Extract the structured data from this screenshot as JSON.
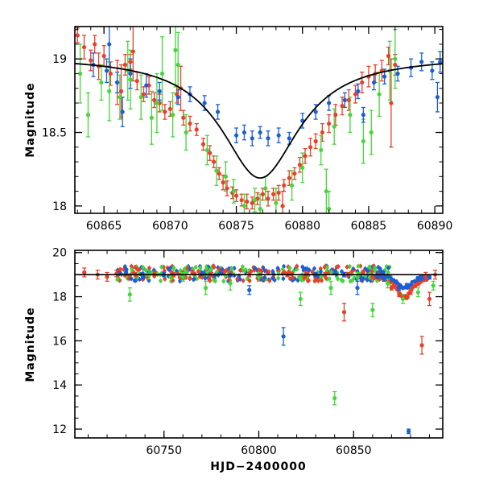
{
  "chart_data": [
    {
      "type": "scatter",
      "panel": "top",
      "ylabel": "Magnitude",
      "xlabel": "",
      "xlim": [
        60862.8,
        60890.6
      ],
      "ylim": [
        19.22,
        17.95
      ],
      "y_inverted": true,
      "x_ticks": [
        60865,
        60870,
        60875,
        60880,
        60885,
        60890
      ],
      "y_ticks": [
        18,
        18.5,
        19
      ],
      "grid": false,
      "colors": {
        "blue": "#1a5fd6",
        "red": "#e8402a",
        "green": "#45d63a",
        "model": "#000000"
      },
      "model_curve": {
        "shape": "lorentzian",
        "t0": 60876.8,
        "baseline": 19.02,
        "peak": 18.19,
        "width": 3.6
      },
      "series": [
        {
          "color": "red",
          "points": [
            [
              60863.0,
              19.16,
              0.05
            ],
            [
              60863.5,
              19.08,
              0.08
            ],
            [
              60864.0,
              18.99,
              0.07
            ],
            [
              60864.3,
              19.1,
              0.06
            ],
            [
              60864.6,
              18.95,
              0.09
            ],
            [
              60865.0,
              19.02,
              0.07
            ],
            [
              60865.5,
              18.9,
              0.08
            ],
            [
              60866.0,
              18.84,
              0.15
            ],
            [
              60866.3,
              18.78,
              0.18
            ],
            [
              60866.6,
              18.96,
              0.07
            ],
            [
              60867.0,
              18.98,
              0.05
            ],
            [
              60867.5,
              18.85,
              0.06
            ],
            [
              60868.0,
              18.76,
              0.05
            ],
            [
              60868.4,
              18.82,
              0.06
            ],
            [
              60868.8,
              18.72,
              0.05
            ],
            [
              60869.2,
              18.7,
              0.06
            ],
            [
              60869.6,
              18.64,
              0.05
            ],
            [
              60870.0,
              18.66,
              0.05
            ],
            [
              60870.5,
              18.76,
              0.06
            ],
            [
              60871.0,
              18.6,
              0.05
            ],
            [
              60871.5,
              18.56,
              0.05
            ],
            [
              60872.0,
              18.52,
              0.04
            ],
            [
              60872.5,
              18.42,
              0.04
            ],
            [
              60873.0,
              18.36,
              0.05
            ],
            [
              60873.3,
              18.3,
              0.04
            ],
            [
              60873.7,
              18.22,
              0.04
            ],
            [
              60874.0,
              18.16,
              0.05
            ],
            [
              60874.3,
              18.12,
              0.05
            ],
            [
              60874.7,
              18.09,
              0.04
            ],
            [
              60875.0,
              18.07,
              0.04
            ],
            [
              60875.4,
              18.04,
              0.04
            ],
            [
              60875.8,
              18.03,
              0.05
            ],
            [
              60876.2,
              18.02,
              0.04
            ],
            [
              60876.6,
              18.05,
              0.04
            ],
            [
              60877.0,
              18.08,
              0.04
            ],
            [
              60877.4,
              18.05,
              0.05
            ],
            [
              60877.8,
              18.08,
              0.04
            ],
            [
              60878.2,
              18.09,
              0.05
            ],
            [
              60878.6,
              18.14,
              0.04
            ],
            [
              60879.0,
              18.19,
              0.05
            ],
            [
              60879.4,
              18.22,
              0.04
            ],
            [
              60879.8,
              18.28,
              0.05
            ],
            [
              60880.2,
              18.34,
              0.05
            ],
            [
              60880.6,
              18.4,
              0.06
            ],
            [
              60881.0,
              18.44,
              0.05
            ],
            [
              60881.5,
              18.5,
              0.06
            ],
            [
              60882.0,
              18.56,
              0.06
            ],
            [
              60882.5,
              18.62,
              0.07
            ],
            [
              60883.0,
              18.68,
              0.06
            ],
            [
              60883.5,
              18.72,
              0.07
            ],
            [
              60884.0,
              18.76,
              0.06
            ],
            [
              60884.5,
              18.84,
              0.07
            ],
            [
              60885.0,
              18.88,
              0.07
            ],
            [
              60885.5,
              18.9,
              0.06
            ],
            [
              60886.0,
              18.92,
              0.07
            ],
            [
              60886.5,
              19.02,
              0.06
            ],
            [
              60886.7,
              18.7,
              0.3
            ],
            [
              60887.0,
              18.96,
              0.07
            ],
            [
              60870.8,
              18.8,
              0.15
            ],
            [
              60867.2,
              19.05,
              0.2
            ],
            [
              60878.5,
              18.0,
              0.1
            ]
          ]
        },
        {
          "color": "green",
          "points": [
            [
              60863.2,
              18.9,
              0.2
            ],
            [
              60863.8,
              18.62,
              0.15
            ],
            [
              60864.8,
              18.84,
              0.12
            ],
            [
              60865.4,
              18.78,
              0.2
            ],
            [
              60866.2,
              18.74,
              0.15
            ],
            [
              60867.0,
              18.86,
              0.2
            ],
            [
              60867.8,
              18.74,
              0.15
            ],
            [
              60868.6,
              18.6,
              0.18
            ],
            [
              60869.4,
              18.9,
              0.25
            ],
            [
              60870.2,
              18.62,
              0.15
            ],
            [
              60870.6,
              18.96,
              0.22
            ],
            [
              60871.2,
              18.5,
              0.12
            ],
            [
              60872.8,
              18.38,
              0.1
            ],
            [
              60873.5,
              18.24,
              0.1
            ],
            [
              60874.2,
              18.2,
              0.1
            ],
            [
              60874.8,
              18.1,
              0.08
            ],
            [
              60875.6,
              18.0,
              0.08
            ],
            [
              60876.4,
              18.04,
              0.08
            ],
            [
              60877.2,
              18.12,
              0.08
            ],
            [
              60878.0,
              18.02,
              0.1
            ],
            [
              60879.2,
              18.14,
              0.1
            ],
            [
              60880.0,
              18.26,
              0.1
            ],
            [
              60881.4,
              18.38,
              0.1
            ],
            [
              60882.4,
              18.54,
              0.12
            ],
            [
              60883.6,
              18.62,
              0.12
            ],
            [
              60884.6,
              18.44,
              0.15
            ],
            [
              60885.2,
              18.5,
              0.15
            ],
            [
              60885.8,
              18.76,
              0.15
            ],
            [
              60886.6,
              18.92,
              0.2
            ],
            [
              60881.8,
              18.1,
              0.15
            ],
            [
              60869.0,
              18.7,
              0.2
            ],
            [
              60866.8,
              18.92,
              0.2
            ],
            [
              60870.4,
              19.06,
              0.25
            ],
            [
              60887.0,
              19.0,
              0.2
            ],
            [
              60882.0,
              17.98,
              0.12
            ],
            [
              60876.8,
              17.98,
              0.1
            ]
          ]
        },
        {
          "color": "blue",
          "points": [
            [
              60864.2,
              18.96,
              0.08
            ],
            [
              60865.2,
              18.92,
              0.08
            ],
            [
              60866.0,
              18.84,
              0.07
            ],
            [
              60867.0,
              18.9,
              0.1
            ],
            [
              60868.2,
              18.82,
              0.08
            ],
            [
              60869.2,
              18.78,
              0.06
            ],
            [
              60870.6,
              18.74,
              0.05
            ],
            [
              60871.5,
              18.76,
              0.05
            ],
            [
              60872.6,
              18.7,
              0.05
            ],
            [
              60873.6,
              18.64,
              0.05
            ],
            [
              60875.0,
              18.48,
              0.05
            ],
            [
              60875.6,
              18.5,
              0.05
            ],
            [
              60876.2,
              18.46,
              0.05
            ],
            [
              60876.8,
              18.5,
              0.04
            ],
            [
              60877.4,
              18.46,
              0.05
            ],
            [
              60878.2,
              18.48,
              0.05
            ],
            [
              60879.0,
              18.46,
              0.04
            ],
            [
              60880.0,
              18.58,
              0.05
            ],
            [
              60881.0,
              18.64,
              0.05
            ],
            [
              60882.0,
              18.7,
              0.05
            ],
            [
              60883.2,
              18.72,
              0.05
            ],
            [
              60884.2,
              18.78,
              0.05
            ],
            [
              60885.4,
              18.84,
              0.05
            ],
            [
              60886.2,
              18.88,
              0.05
            ],
            [
              60887.2,
              18.9,
              0.05
            ],
            [
              60888.2,
              18.94,
              0.06
            ],
            [
              60889.0,
              18.98,
              0.06
            ],
            [
              60889.8,
              18.92,
              0.06
            ],
            [
              60890.4,
              18.98,
              0.07
            ],
            [
              60884.6,
              18.62,
              0.05
            ],
            [
              60866.4,
              18.64,
              0.1
            ],
            [
              60865.4,
              19.1,
              0.15
            ],
            [
              60890.2,
              18.74,
              0.1
            ]
          ]
        }
      ]
    },
    {
      "type": "scatter",
      "panel": "bottom",
      "ylabel": "Magnitude",
      "xlabel": "HJD−2400000",
      "xlim": [
        60703,
        60897
      ],
      "ylim": [
        20.1,
        11.6
      ],
      "y_inverted": true,
      "x_ticks": [
        60750,
        60800,
        60850
      ],
      "y_ticks": [
        12,
        14,
        16,
        18,
        20
      ],
      "grid": false,
      "baseline_magnitude": 19.0,
      "series": [
        {
          "color": "red",
          "points": [
            [
              60708,
              19.1,
              0.2
            ],
            [
              60715,
              19.0,
              0.2
            ],
            [
              60720,
              18.9,
              0.2
            ],
            [
              60725,
              19.05,
              0.15
            ],
            [
              60735,
              19.0,
              0.1
            ],
            [
              60745,
              19.05,
              0.1
            ],
            [
              60755,
              19.0,
              0.1
            ],
            [
              60765,
              19.1,
              0.1
            ],
            [
              60775,
              19.0,
              0.1
            ],
            [
              60785,
              19.05,
              0.1
            ],
            [
              60795,
              19.0,
              0.1
            ],
            [
              60805,
              19.1,
              0.1
            ],
            [
              60815,
              19.0,
              0.1
            ],
            [
              60825,
              19.05,
              0.1
            ],
            [
              60835,
              19.0,
              0.1
            ],
            [
              60845,
              17.3,
              0.4
            ],
            [
              60847,
              19.0,
              0.1
            ],
            [
              60855,
              19.1,
              0.1
            ],
            [
              60860,
              18.9,
              0.1
            ],
            [
              60866,
              18.8,
              0.1
            ],
            [
              60870,
              18.4,
              0.1
            ],
            [
              60874,
              18.1,
              0.1
            ],
            [
              60877,
              18.0,
              0.1
            ],
            [
              60880,
              18.2,
              0.1
            ],
            [
              60884,
              18.6,
              0.1
            ],
            [
              60886,
              15.8,
              0.4
            ],
            [
              60888,
              18.9,
              0.2
            ],
            [
              60890,
              17.9,
              0.3
            ],
            [
              60893,
              19.0,
              0.2
            ]
          ]
        },
        {
          "color": "green",
          "points": [
            [
              60732,
              18.1,
              0.3
            ],
            [
              60742,
              19.0,
              0.2
            ],
            [
              60760,
              18.9,
              0.2
            ],
            [
              60772,
              18.4,
              0.3
            ],
            [
              60785,
              18.6,
              0.3
            ],
            [
              60800,
              18.9,
              0.2
            ],
            [
              60822,
              17.9,
              0.3
            ],
            [
              60838,
              18.4,
              0.3
            ],
            [
              60840,
              13.4,
              0.3
            ],
            [
              60852,
              18.9,
              0.2
            ],
            [
              60860,
              17.4,
              0.3
            ],
            [
              60868,
              18.6,
              0.2
            ],
            [
              60876,
              17.9,
              0.2
            ],
            [
              60884,
              18.2,
              0.2
            ],
            [
              60892,
              18.5,
              0.2
            ]
          ]
        },
        {
          "color": "blue",
          "points": [
            [
              60730,
              19.1,
              0.1
            ],
            [
              60750,
              19.0,
              0.1
            ],
            [
              60770,
              19.05,
              0.1
            ],
            [
              60785,
              19.0,
              0.1
            ],
            [
              60795,
              18.3,
              0.2
            ],
            [
              60813,
              16.2,
              0.4
            ],
            [
              60830,
              19.0,
              0.1
            ],
            [
              60845,
              19.0,
              0.1
            ],
            [
              60852,
              18.4,
              0.3
            ],
            [
              60866,
              18.8,
              0.1
            ],
            [
              60874,
              18.4,
              0.1
            ],
            [
              60878,
              18.5,
              0.1
            ],
            [
              60879,
              11.9,
              0.1
            ],
            [
              60884,
              18.8,
              0.1
            ],
            [
              60890,
              18.9,
              0.1
            ]
          ]
        }
      ],
      "dense_band": {
        "x_range": [
          60725,
          60870
        ],
        "center": 19.05,
        "spread": 0.35,
        "colors": [
          "blue",
          "green",
          "red"
        ]
      }
    }
  ]
}
